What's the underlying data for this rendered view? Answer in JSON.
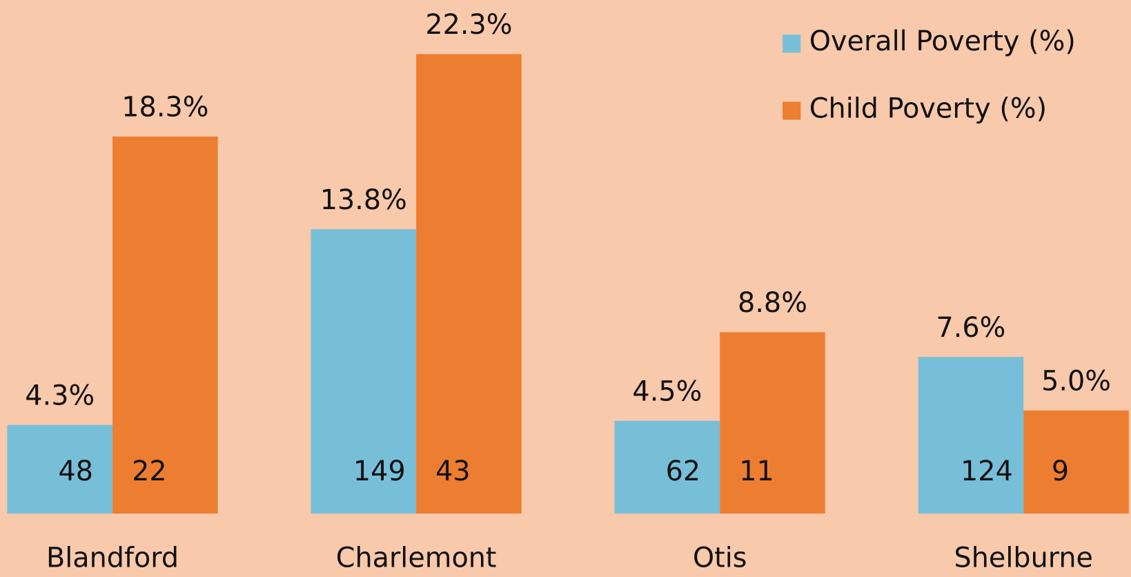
{
  "chart_data": {
    "type": "bar",
    "categories": [
      "Blandford",
      "Charlemont",
      "Otis",
      "Shelburne"
    ],
    "series": [
      {
        "name": "Overall Poverty (%)",
        "color": "#77bfd9",
        "values": [
          4.3,
          13.8,
          4.5,
          7.6
        ],
        "value_labels": [
          "4.3%",
          "13.8%",
          "4.5%",
          "7.6%"
        ],
        "counts": [
          48,
          149,
          62,
          124
        ]
      },
      {
        "name": "Child Poverty (%)",
        "color": "#ed7d31",
        "values": [
          18.3,
          22.3,
          8.8,
          5.0
        ],
        "value_labels": [
          "18.3%",
          "22.3%",
          "8.8%",
          "5.0%"
        ],
        "counts": [
          22,
          43,
          11,
          9
        ]
      }
    ],
    "legend": "top-right"
  }
}
